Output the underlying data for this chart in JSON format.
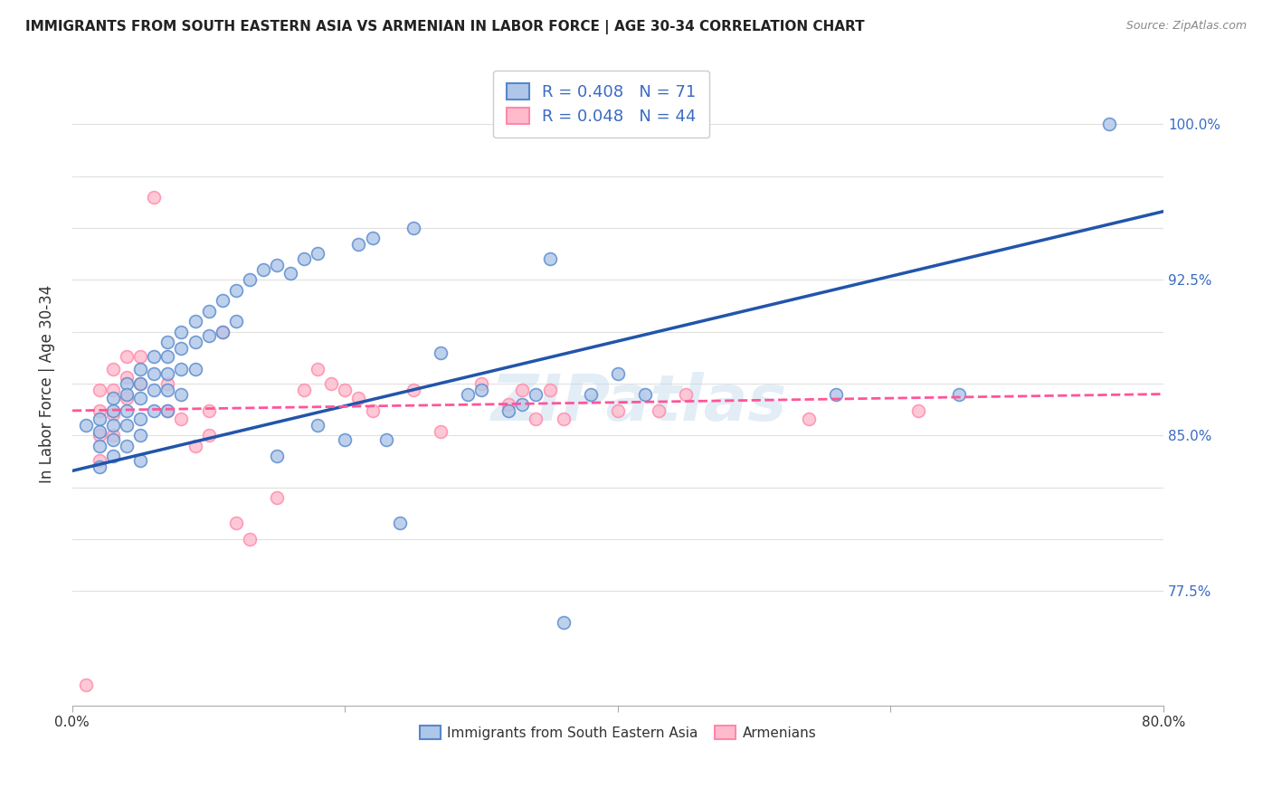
{
  "title": "IMMIGRANTS FROM SOUTH EASTERN ASIA VS ARMENIAN IN LABOR FORCE | AGE 30-34 CORRELATION CHART",
  "source": "Source: ZipAtlas.com",
  "ylabel": "In Labor Force | Age 30-34",
  "legend_label_blue": "Immigrants from South Eastern Asia",
  "legend_label_pink": "Armenians",
  "legend_R_blue": "R = 0.408",
  "legend_N_blue": "N = 71",
  "legend_R_pink": "R = 0.048",
  "legend_N_pink": "N = 44",
  "xlim": [
    0.0,
    0.8
  ],
  "ylim": [
    0.72,
    1.03
  ],
  "blue_color": "#AEC6E8",
  "blue_edge_color": "#5588CC",
  "pink_color": "#FFBBCC",
  "pink_edge_color": "#FF88AA",
  "blue_line_color": "#2255AA",
  "pink_line_color": "#FF5599",
  "background_color": "#FFFFFF",
  "grid_color": "#E0E0E0",
  "watermark_text": "ZIPatlas",
  "marker_size": 100,
  "blue_scatter_x": [
    0.01,
    0.02,
    0.02,
    0.02,
    0.02,
    0.03,
    0.03,
    0.03,
    0.03,
    0.03,
    0.04,
    0.04,
    0.04,
    0.04,
    0.04,
    0.05,
    0.05,
    0.05,
    0.05,
    0.05,
    0.05,
    0.06,
    0.06,
    0.06,
    0.06,
    0.07,
    0.07,
    0.07,
    0.07,
    0.07,
    0.08,
    0.08,
    0.08,
    0.08,
    0.09,
    0.09,
    0.09,
    0.1,
    0.1,
    0.11,
    0.11,
    0.12,
    0.12,
    0.13,
    0.14,
    0.15,
    0.15,
    0.16,
    0.17,
    0.18,
    0.18,
    0.2,
    0.21,
    0.22,
    0.23,
    0.24,
    0.25,
    0.27,
    0.29,
    0.3,
    0.32,
    0.33,
    0.34,
    0.35,
    0.36,
    0.38,
    0.4,
    0.42,
    0.56,
    0.65,
    0.76
  ],
  "blue_scatter_y": [
    0.855,
    0.858,
    0.852,
    0.845,
    0.835,
    0.868,
    0.862,
    0.855,
    0.848,
    0.84,
    0.875,
    0.87,
    0.862,
    0.855,
    0.845,
    0.882,
    0.875,
    0.868,
    0.858,
    0.85,
    0.838,
    0.888,
    0.88,
    0.872,
    0.862,
    0.895,
    0.888,
    0.88,
    0.872,
    0.862,
    0.9,
    0.892,
    0.882,
    0.87,
    0.905,
    0.895,
    0.882,
    0.91,
    0.898,
    0.915,
    0.9,
    0.92,
    0.905,
    0.925,
    0.93,
    0.932,
    0.84,
    0.928,
    0.935,
    0.855,
    0.938,
    0.848,
    0.942,
    0.945,
    0.848,
    0.808,
    0.95,
    0.89,
    0.87,
    0.872,
    0.862,
    0.865,
    0.87,
    0.935,
    0.76,
    0.87,
    0.88,
    0.87,
    0.87,
    0.87,
    1.0
  ],
  "pink_scatter_x": [
    0.01,
    0.02,
    0.02,
    0.02,
    0.02,
    0.03,
    0.03,
    0.03,
    0.03,
    0.04,
    0.04,
    0.04,
    0.05,
    0.05,
    0.06,
    0.07,
    0.07,
    0.08,
    0.09,
    0.1,
    0.1,
    0.11,
    0.12,
    0.13,
    0.15,
    0.17,
    0.18,
    0.19,
    0.2,
    0.21,
    0.22,
    0.25,
    0.27,
    0.3,
    0.32,
    0.33,
    0.34,
    0.35,
    0.36,
    0.4,
    0.43,
    0.45,
    0.54,
    0.62
  ],
  "pink_scatter_y": [
    0.73,
    0.872,
    0.862,
    0.85,
    0.838,
    0.882,
    0.872,
    0.86,
    0.85,
    0.888,
    0.878,
    0.868,
    0.888,
    0.875,
    0.965,
    0.875,
    0.862,
    0.858,
    0.845,
    0.862,
    0.85,
    0.9,
    0.808,
    0.8,
    0.82,
    0.872,
    0.882,
    0.875,
    0.872,
    0.868,
    0.862,
    0.872,
    0.852,
    0.875,
    0.865,
    0.872,
    0.858,
    0.872,
    0.858,
    0.862,
    0.862,
    0.87,
    0.858,
    0.862
  ],
  "blue_line_x0": 0.0,
  "blue_line_y0": 0.833,
  "blue_line_x1": 0.8,
  "blue_line_y1": 0.958,
  "pink_line_x0": 0.0,
  "pink_line_y0": 0.862,
  "pink_line_x1": 0.8,
  "pink_line_y1": 0.87
}
